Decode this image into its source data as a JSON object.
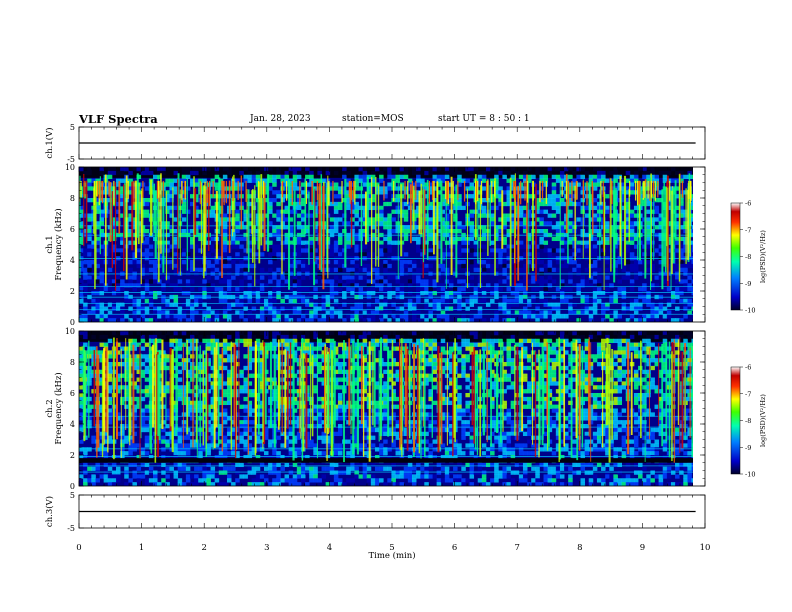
{
  "header": {
    "title": "VLF Spectra",
    "date": "Jan. 28, 2023",
    "station": "station=MOS",
    "start_ut": "start UT =  8 : 50 : 1"
  },
  "colors": {
    "colormap": [
      "#00002a",
      "#0000b0",
      "#0040ff",
      "#00c8ff",
      "#00ff80",
      "#b4ff00",
      "#ffff00",
      "#ff6000",
      "#d00000",
      "#ffffff"
    ],
    "background_dark": "#000018"
  },
  "chart_data": [
    {
      "type": "line",
      "panel": "ch1-waveform",
      "ylabel": "ch.1(V)",
      "ylim": [
        -5,
        5
      ],
      "yticks": [
        "5",
        "-5"
      ],
      "xlim": [
        0,
        10
      ],
      "series": [
        {
          "x": [
            0,
            9.85
          ],
          "values": [
            0,
            0
          ]
        }
      ]
    },
    {
      "type": "heatmap",
      "panel": "ch1-spectrogram",
      "ylabel": "ch.1 Frequency (kHz)",
      "ylim": [
        0,
        10
      ],
      "yticks": [
        "0",
        "2",
        "4",
        "6",
        "8",
        "10"
      ],
      "xlim": [
        0,
        10
      ],
      "data_xmax": 9.85,
      "colorbar": {
        "label": "log(PSD)(V²/Hz)",
        "range": [
          -10,
          -6
        ],
        "ticks": [
          "-6",
          "-7",
          "-8",
          "-9",
          "-10"
        ]
      }
    },
    {
      "type": "heatmap",
      "panel": "ch2-spectrogram",
      "ylabel": "ch.2 Frequency (kHz)",
      "ylim": [
        0,
        10
      ],
      "yticks": [
        "0",
        "2",
        "4",
        "6",
        "8",
        "10"
      ],
      "xlim": [
        0,
        10
      ],
      "data_xmax": 9.85,
      "colorbar": {
        "label": "log(PSD)(V²/Hz)",
        "range": [
          -10,
          -6
        ],
        "ticks": [
          "-6",
          "-7",
          "-8",
          "-9",
          "-10"
        ]
      }
    },
    {
      "type": "line",
      "panel": "ch3-waveform",
      "ylabel": "ch.3(V)",
      "ylim": [
        -5,
        5
      ],
      "yticks": [
        "5",
        "-5"
      ],
      "xlim": [
        0,
        10
      ],
      "series": [
        {
          "x": [
            0,
            9.85
          ],
          "values": [
            0,
            0
          ]
        }
      ]
    }
  ],
  "xaxis": {
    "label": "Time (min)",
    "ticks": [
      "0",
      "1",
      "2",
      "3",
      "4",
      "5",
      "6",
      "7",
      "8",
      "9",
      "10"
    ]
  }
}
